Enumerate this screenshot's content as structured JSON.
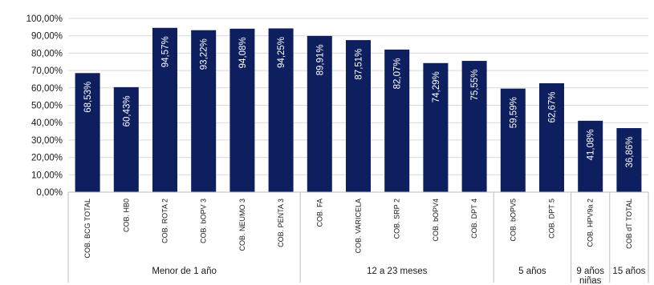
{
  "chart_data": {
    "type": "bar",
    "categories": [
      "COB. BCG TOTAL",
      "COB. HB0",
      "COB. ROTA 2",
      "COB. bOPV 3",
      "COB. NEUMO 3",
      "COB. PENTA 3",
      "COB. FA",
      "COB. VARICELA",
      "COB. SRP 2",
      "COB. bOPV4",
      "COB. DPT 4",
      "COB. bOPV5",
      "COB. DPT 5",
      "COB. HPV9a 2",
      "COB dT TOTAL"
    ],
    "values": [
      68.53,
      60.43,
      94.57,
      93.22,
      94.08,
      94.25,
      89.91,
      87.51,
      82.07,
      74.29,
      75.55,
      59.59,
      62.67,
      41.08,
      36.86
    ],
    "data_labels": [
      "68,53%",
      "60,43%",
      "94,57%",
      "93,22%",
      "94,08%",
      "94,25%",
      "89,91%",
      "87,51%",
      "82,07%",
      "74,29%",
      "75,55%",
      "59,59%",
      "62,67%",
      "41,08%",
      "36,86%"
    ],
    "y_tick_labels": [
      "0,00%",
      "10,00%",
      "20,00%",
      "30,00%",
      "40,00%",
      "50,00%",
      "60,00%",
      "70,00%",
      "80,00%",
      "90,00%",
      "100,00%"
    ],
    "ylim": [
      0,
      100
    ],
    "groups": [
      {
        "label": "Menor de 1 año",
        "start": 0,
        "end": 5
      },
      {
        "label": "12 a 23 meses",
        "start": 6,
        "end": 10
      },
      {
        "label": "5 años",
        "start": 11,
        "end": 12
      },
      {
        "label": "9 años niñas",
        "start": 13,
        "end": 13
      },
      {
        "label": "15 años",
        "start": 14,
        "end": 14
      }
    ],
    "bar_color": "#0d1f5e",
    "grid": true,
    "legend": "none"
  }
}
